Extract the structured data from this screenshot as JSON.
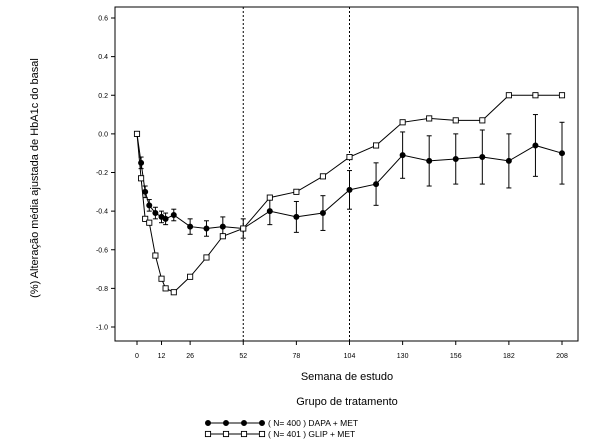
{
  "chart_data": {
    "type": "line",
    "ylabel": "(%) Alteração média ajustada de HbA1c do basal",
    "xlabel": "Semana de estudo",
    "ylim": [
      -1.0,
      0.6
    ],
    "xlim": [
      -8,
      212
    ],
    "yticks": [
      -1.0,
      -0.8,
      -0.6,
      -0.4,
      -0.2,
      0.0,
      0.2,
      0.4,
      0.6
    ],
    "ytick_labels": [
      "-1.0",
      "-0.8",
      "-0.6",
      "-0.4",
      "-0.2",
      "0.0",
      "0.2",
      "0.4",
      "0.6"
    ],
    "xticks": [
      0,
      12,
      26,
      52,
      78,
      104,
      130,
      156,
      182,
      208
    ],
    "xtick_labels": [
      "0",
      "12",
      "26",
      "52",
      "78",
      "104",
      "130",
      "156",
      "182",
      "208"
    ],
    "reference_lines_x": [
      52,
      104
    ],
    "legend_title": "Grupo de tratamento",
    "legend_position": "bottom",
    "series": [
      {
        "name": "( N= 400 ) DAPA + MET",
        "marker": "filled-circle",
        "color": "#000000",
        "x": [
          0,
          2,
          4,
          6,
          9,
          12,
          14,
          18,
          26,
          34,
          42,
          52,
          65,
          78,
          91,
          104,
          117,
          130,
          143,
          156,
          169,
          182,
          195,
          208
        ],
        "y": [
          0.0,
          -0.15,
          -0.3,
          -0.37,
          -0.41,
          -0.43,
          -0.44,
          -0.42,
          -0.48,
          -0.49,
          -0.48,
          -0.49,
          -0.4,
          -0.43,
          -0.41,
          -0.29,
          -0.26,
          -0.11,
          -0.14,
          -0.13,
          -0.12,
          -0.14,
          -0.06,
          -0.1
        ],
        "err": [
          0.0,
          0.03,
          0.03,
          0.03,
          0.03,
          0.03,
          0.03,
          0.03,
          0.04,
          0.04,
          0.05,
          0.05,
          0.07,
          0.08,
          0.09,
          0.1,
          0.11,
          0.12,
          0.13,
          0.13,
          0.14,
          0.14,
          0.16,
          0.16
        ]
      },
      {
        "name": "( N= 401 ) GLIP + MET",
        "marker": "open-square",
        "color": "#000000",
        "x": [
          0,
          2,
          4,
          6,
          9,
          12,
          14,
          18,
          26,
          34,
          42,
          52,
          65,
          78,
          91,
          104,
          117,
          130,
          143,
          156,
          169,
          182,
          195,
          208
        ],
        "y": [
          0.0,
          -0.23,
          -0.44,
          -0.46,
          -0.63,
          -0.75,
          -0.8,
          -0.82,
          -0.74,
          -0.64,
          -0.53,
          -0.49,
          -0.33,
          -0.3,
          -0.22,
          -0.12,
          -0.06,
          0.06,
          0.08,
          0.07,
          0.07,
          0.2,
          0.2,
          0.2
        ]
      }
    ]
  }
}
